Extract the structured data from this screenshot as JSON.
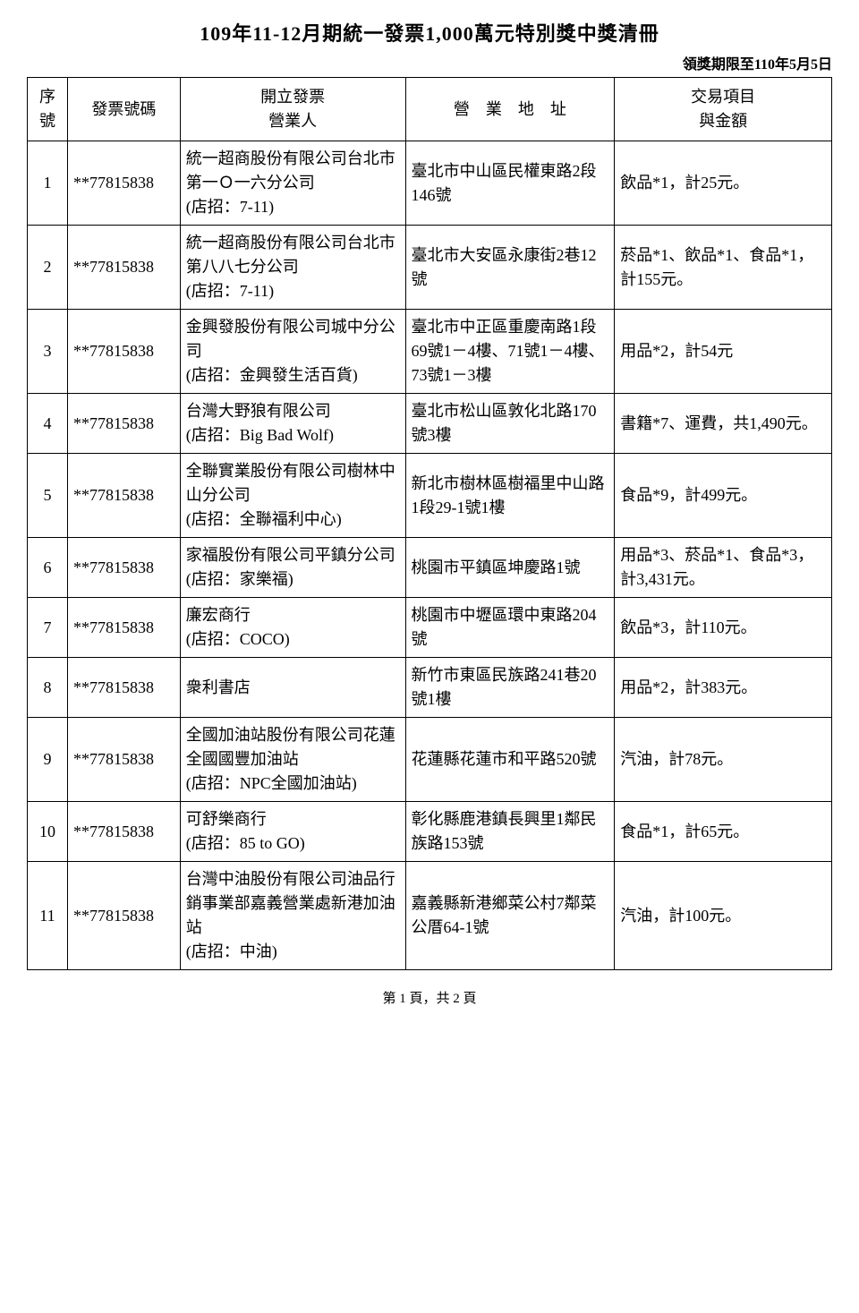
{
  "title": "109年11-12月期統一發票1,000萬元特別獎中獎清冊",
  "deadline": "領獎期限至110年5月5日",
  "columns": {
    "seq": "序號",
    "number": "發票號碼",
    "issuer": "開立發票\n營業人",
    "address": "營　業　地　址",
    "item": "交易項目\n與金額"
  },
  "rows": [
    {
      "seq": "1",
      "number": "**77815838",
      "issuer": "統一超商股份有限公司台北市第一Ｏ一六分公司\n(店招：7-11)",
      "address": "臺北市中山區民權東路2段146號",
      "item": "飲品*1，計25元。"
    },
    {
      "seq": "2",
      "number": "**77815838",
      "issuer": "統一超商股份有限公司台北市第八八七分公司\n(店招：7-11)",
      "address": "臺北市大安區永康街2巷12號",
      "item": "菸品*1、飲品*1、食品*1，計155元。"
    },
    {
      "seq": "3",
      "number": "**77815838",
      "issuer": "金興發股份有限公司城中分公司\n(店招：金興發生活百貨)",
      "address": "臺北市中正區重慶南路1段69號1－4樓、71號1－4樓、73號1－3樓",
      "item": "用品*2，計54元"
    },
    {
      "seq": "4",
      "number": "**77815838",
      "issuer": "台灣大野狼有限公司\n(店招：Big Bad Wolf)",
      "address": "臺北市松山區敦化北路170號3樓",
      "item": "書籍*7、運費，共1,490元。"
    },
    {
      "seq": "5",
      "number": "**77815838",
      "issuer": "全聯實業股份有限公司樹林中山分公司\n(店招：全聯福利中心)",
      "address": "新北市樹林區樹福里中山路1段29-1號1樓",
      "item": "食品*9，計499元。"
    },
    {
      "seq": "6",
      "number": "**77815838",
      "issuer": "家福股份有限公司平鎮分公司\n(店招：家樂福)",
      "address": "桃園市平鎮區坤慶路1號",
      "item": "用品*3、菸品*1、食品*3，計3,431元。"
    },
    {
      "seq": "7",
      "number": "**77815838",
      "issuer": "廉宏商行\n(店招：COCO)",
      "address": "桃園市中壢區環中東路204號",
      "item": "飲品*3，計110元。"
    },
    {
      "seq": "8",
      "number": "**77815838",
      "issuer": "衆利書店",
      "address": "新竹市東區民族路241巷20號1樓",
      "item": "用品*2，計383元。"
    },
    {
      "seq": "9",
      "number": "**77815838",
      "issuer": "全國加油站股份有限公司花蓮全國國豐加油站\n(店招：NPC全國加油站)",
      "address": "花蓮縣花蓮市和平路520號",
      "item": "汽油，計78元。"
    },
    {
      "seq": "10",
      "number": "**77815838",
      "issuer": "可舒樂商行\n(店招：85 to GO)",
      "address": "彰化縣鹿港鎮長興里1鄰民族路153號",
      "item": "食品*1，計65元。"
    },
    {
      "seq": "11",
      "number": "**77815838",
      "issuer": "台灣中油股份有限公司油品行銷事業部嘉義營業處新港加油站\n(店招：中油)",
      "address": "嘉義縣新港鄉菜公村7鄰菜公厝64-1號",
      "item": "汽油，計100元。"
    }
  ],
  "footer": "第 1 頁，共 2 頁"
}
